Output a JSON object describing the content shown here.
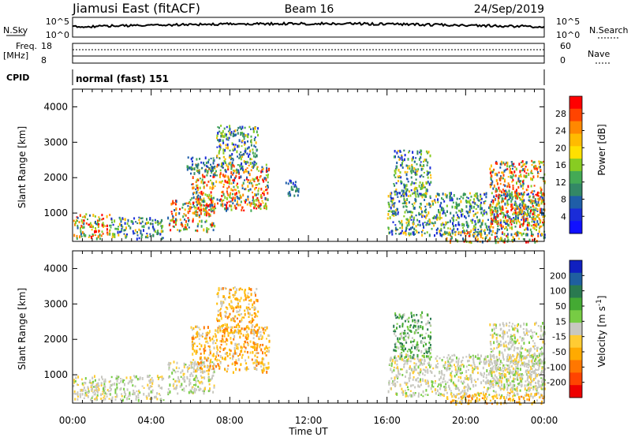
{
  "header": {
    "site": "Jiamusi East (fitACF)",
    "beam": "Beam 16",
    "date": "24/Sep/2019"
  },
  "panels": {
    "nsky": {
      "label": "N.Sky",
      "ticks": [
        "10^5",
        "10^0"
      ],
      "right_label": "N.Search",
      "right_ticks": [
        "10^5",
        "10^0"
      ]
    },
    "freq": {
      "label_line1": "Freq.",
      "label_line2": "[MHz]",
      "ticks": [
        "18",
        "8"
      ],
      "right_label": "Nave",
      "right_ticks": [
        "60",
        "0"
      ]
    },
    "cpid": {
      "label": "CPID",
      "value": "normal (fast) 151"
    }
  },
  "chart_data": [
    {
      "type": "heatmap",
      "name": "power",
      "ylabel": "Slant Range [km]",
      "xlabel": "Time UT",
      "x_range_hours": [
        0,
        24
      ],
      "y_range_km": [
        200,
        4500
      ],
      "yticks": [
        "1000",
        "2000",
        "3000",
        "4000"
      ],
      "xticks": [
        "00:00",
        "04:00",
        "08:00",
        "12:00",
        "16:00",
        "20:00",
        "00:00"
      ],
      "colorbar": {
        "label": "Power [dB]",
        "ticks": [
          "28",
          "24",
          "20",
          "16",
          "12",
          "8",
          "4"
        ],
        "colors": [
          "#ff0000",
          "#ff4400",
          "#ff8800",
          "#ffbb00",
          "#ffe000",
          "#88cc22",
          "#44aa55",
          "#338866",
          "#1f5ea8",
          "#1a2cd8",
          "#1010ff"
        ]
      },
      "echo_regions": [
        {
          "t_start": 0.0,
          "t_end": 1.9,
          "r_min": 300,
          "r_max": 1000,
          "level": "high"
        },
        {
          "t_start": 1.9,
          "t_end": 4.6,
          "r_min": 300,
          "r_max": 900,
          "level": "medium"
        },
        {
          "t_start": 4.8,
          "t_end": 7.2,
          "r_min": 500,
          "r_max": 1400,
          "level": "high"
        },
        {
          "t_start": 6.0,
          "t_end": 10.0,
          "r_min": 1100,
          "r_max": 2400,
          "level": "high"
        },
        {
          "t_start": 7.3,
          "t_end": 9.4,
          "r_min": 2200,
          "r_max": 3500,
          "level": "medium"
        },
        {
          "t_start": 5.8,
          "t_end": 7.2,
          "r_min": 2100,
          "r_max": 2600,
          "level": "low"
        },
        {
          "t_start": 10.8,
          "t_end": 11.5,
          "r_min": 1500,
          "r_max": 2000,
          "level": "low"
        },
        {
          "t_start": 16.0,
          "t_end": 24.0,
          "r_min": 400,
          "r_max": 1600,
          "level": "medium"
        },
        {
          "t_start": 16.3,
          "t_end": 18.2,
          "r_min": 1500,
          "r_max": 2800,
          "level": "medium"
        },
        {
          "t_start": 21.2,
          "t_end": 24.0,
          "r_min": 600,
          "r_max": 2500,
          "level": "high"
        },
        {
          "t_start": 19.0,
          "t_end": 24.0,
          "r_min": 200,
          "r_max": 500,
          "level": "high"
        }
      ]
    },
    {
      "type": "heatmap",
      "name": "velocity",
      "ylabel": "Slant Range [km]",
      "xlabel": "Time UT",
      "x_range_hours": [
        0,
        24
      ],
      "y_range_km": [
        200,
        4500
      ],
      "yticks": [
        "1000",
        "2000",
        "3000",
        "4000"
      ],
      "xticks": [
        "00:00",
        "04:00",
        "08:00",
        "12:00",
        "16:00",
        "20:00",
        "00:00"
      ],
      "colorbar": {
        "label": "Velocity [m s^-1]",
        "ticks": [
          "200",
          "100",
          "50",
          "15",
          "-15",
          "-50",
          "-100",
          "-200"
        ],
        "colors": [
          "#1020c0",
          "#1f5fa0",
          "#2a7a50",
          "#44aa33",
          "#77cc44",
          "#c8c8c0",
          "#ffcc33",
          "#ffaa00",
          "#ff7700",
          "#ff4400",
          "#ee0000"
        ]
      },
      "echo_regions": [
        {
          "t_start": 0.0,
          "t_end": 4.6,
          "r_min": 300,
          "r_max": 1000,
          "level": "grey"
        },
        {
          "t_start": 4.8,
          "t_end": 7.2,
          "r_min": 500,
          "r_max": 1400,
          "level": "grey"
        },
        {
          "t_start": 6.0,
          "t_end": 10.0,
          "r_min": 1100,
          "r_max": 2400,
          "level": "orange"
        },
        {
          "t_start": 7.3,
          "t_end": 9.4,
          "r_min": 2200,
          "r_max": 3500,
          "level": "orange"
        },
        {
          "t_start": 16.0,
          "t_end": 24.0,
          "r_min": 400,
          "r_max": 1600,
          "level": "grey"
        },
        {
          "t_start": 16.3,
          "t_end": 18.2,
          "r_min": 1500,
          "r_max": 2800,
          "level": "green"
        },
        {
          "t_start": 21.2,
          "t_end": 24.0,
          "r_min": 600,
          "r_max": 2500,
          "level": "grey"
        },
        {
          "t_start": 19.0,
          "t_end": 24.0,
          "r_min": 200,
          "r_max": 500,
          "level": "orange"
        }
      ]
    }
  ]
}
